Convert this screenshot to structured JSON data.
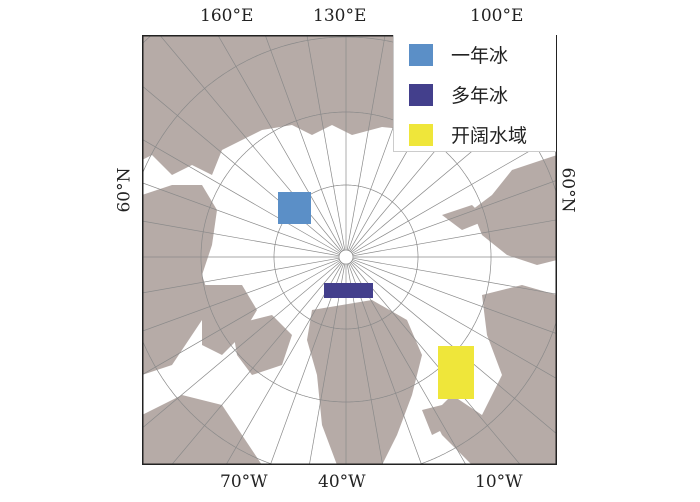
{
  "labels": {
    "top": [
      "160°E",
      "130°E",
      "100°E"
    ],
    "bottom": [
      "70°W",
      "40°W",
      "10°W"
    ],
    "left": "60°N",
    "right": "60°N"
  },
  "legend": [
    {
      "label": "一年冰",
      "color": "#5b8fc7"
    },
    {
      "label": "多年冰",
      "color": "#433f8c"
    },
    {
      "label": "开阔水域",
      "color": "#efe63a"
    }
  ],
  "colors": {
    "land": "#b6aba7",
    "ocean": "#ffffff",
    "graticule": "#8a8a8a"
  }
}
